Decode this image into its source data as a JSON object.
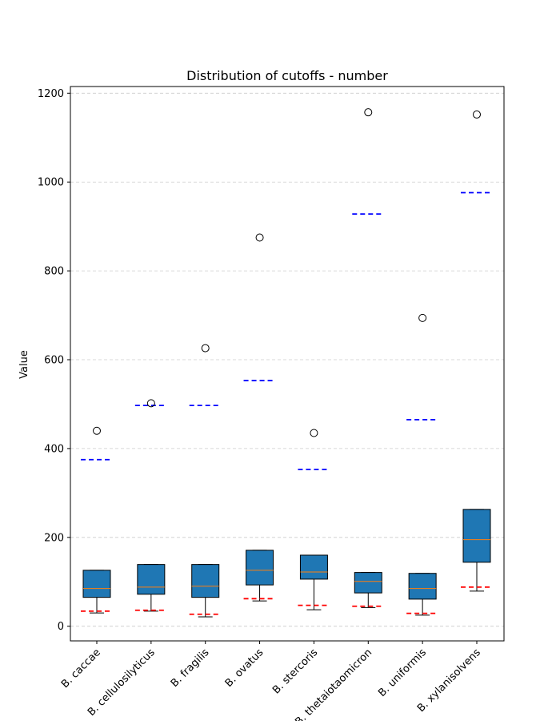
{
  "chart_data": {
    "type": "box",
    "title": "Distribution of cutoffs - number",
    "xlabel": "",
    "ylabel": "Value",
    "ylim": [
      -33,
      1215
    ],
    "yticks": [
      0,
      200,
      400,
      600,
      800,
      1000,
      1200
    ],
    "grid": "y-dashed",
    "categories": [
      "B. caccae",
      "B. cellulosilyticus",
      "B. fragilis",
      "B. ovatus",
      "B. stercoris",
      "B. thetaiotaomicron",
      "B. uniformis",
      "B. xylanisolvens"
    ],
    "boxes": [
      {
        "whisker_low": 30,
        "q1": 65,
        "median": 85,
        "q3": 126,
        "whisker_high": 126,
        "outliers": [
          440
        ],
        "upper_line": 375,
        "lower_line": 34
      },
      {
        "whisker_low": 34,
        "q1": 72,
        "median": 88,
        "q3": 139,
        "whisker_high": 139,
        "outliers": [
          502
        ],
        "upper_line": 497,
        "lower_line": 36
      },
      {
        "whisker_low": 21,
        "q1": 65,
        "median": 90,
        "q3": 139,
        "whisker_high": 139,
        "outliers": [
          626
        ],
        "upper_line": 497,
        "lower_line": 27
      },
      {
        "whisker_low": 57,
        "q1": 93,
        "median": 126,
        "q3": 171,
        "whisker_high": 171,
        "outliers": [
          875
        ],
        "upper_line": 553,
        "lower_line": 62
      },
      {
        "whisker_low": 37,
        "q1": 106,
        "median": 122,
        "q3": 160,
        "whisker_high": 160,
        "outliers": [
          435
        ],
        "upper_line": 353,
        "lower_line": 47
      },
      {
        "whisker_low": 42,
        "q1": 75,
        "median": 101,
        "q3": 121,
        "whisker_high": 121,
        "outliers": [
          1157
        ],
        "upper_line": 928,
        "lower_line": 45
      },
      {
        "whisker_low": 25,
        "q1": 61,
        "median": 85,
        "q3": 119,
        "whisker_high": 119,
        "outliers": [
          694
        ],
        "upper_line": 465,
        "lower_line": 29
      },
      {
        "whisker_low": 79,
        "q1": 144,
        "median": 195,
        "q3": 263,
        "whisker_high": 263,
        "outliers": [
          1152
        ],
        "upper_line": 976,
        "lower_line": 88
      }
    ],
    "colors": {
      "box_fill": "#1f77b4",
      "median": "#ff7f0e",
      "upper_line": "#0000ff",
      "lower_line": "#ff0000",
      "grid": "#cccccc"
    }
  }
}
